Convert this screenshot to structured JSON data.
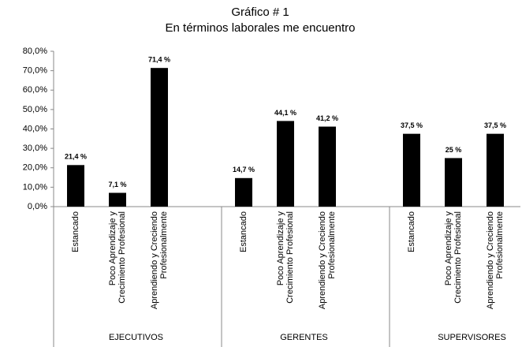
{
  "chart_data": {
    "type": "bar",
    "title": "Gráfico # 1",
    "subtitle": "En términos laborales me encuentro",
    "groups": [
      "EJECUTIVOS",
      "GERENTES",
      "SUPERVISORES"
    ],
    "categories": [
      [
        "Estancado"
      ],
      [
        "Poco Aprendizaje y",
        "Crecimiento Profesional"
      ],
      [
        "Aprendiendo y Creciendo",
        "Profesionalmente"
      ],
      [
        "Estancado"
      ],
      [
        "Poco Aprendizaje y",
        "Crecimiento Profesional"
      ],
      [
        "Aprendiendo y Creciendo",
        "Profesionalmente"
      ],
      [
        "Estancado"
      ],
      [
        "Poco Aprendizaje y",
        "Crecimiento Profesional"
      ],
      [
        "Aprendiendo y Creciendo",
        "Profesionalmente"
      ]
    ],
    "values": [
      21.4,
      7.1,
      71.4,
      14.7,
      44.1,
      41.2,
      37.5,
      25,
      37.5
    ],
    "value_labels": [
      "21,4 %",
      "7,1 %",
      "71,4 %",
      "14,7 %",
      "44,1 %",
      "41,2 %",
      "37,5 %",
      "25 %",
      "37,5 %"
    ],
    "color": "#000000",
    "ylim": [
      0,
      80
    ],
    "yticks": [
      {
        "value": 0,
        "label": "0,0%"
      },
      {
        "value": 10,
        "label": "10,0%"
      },
      {
        "value": 20,
        "label": "20,0%"
      },
      {
        "value": 30,
        "label": "30,0%"
      },
      {
        "value": 40,
        "label": "40,0%"
      },
      {
        "value": 50,
        "label": "50,0%"
      },
      {
        "value": 60,
        "label": "60,0%"
      },
      {
        "value": 70,
        "label": "70,0%"
      },
      {
        "value": 80,
        "label": "80,0%"
      }
    ],
    "grid": false
  }
}
